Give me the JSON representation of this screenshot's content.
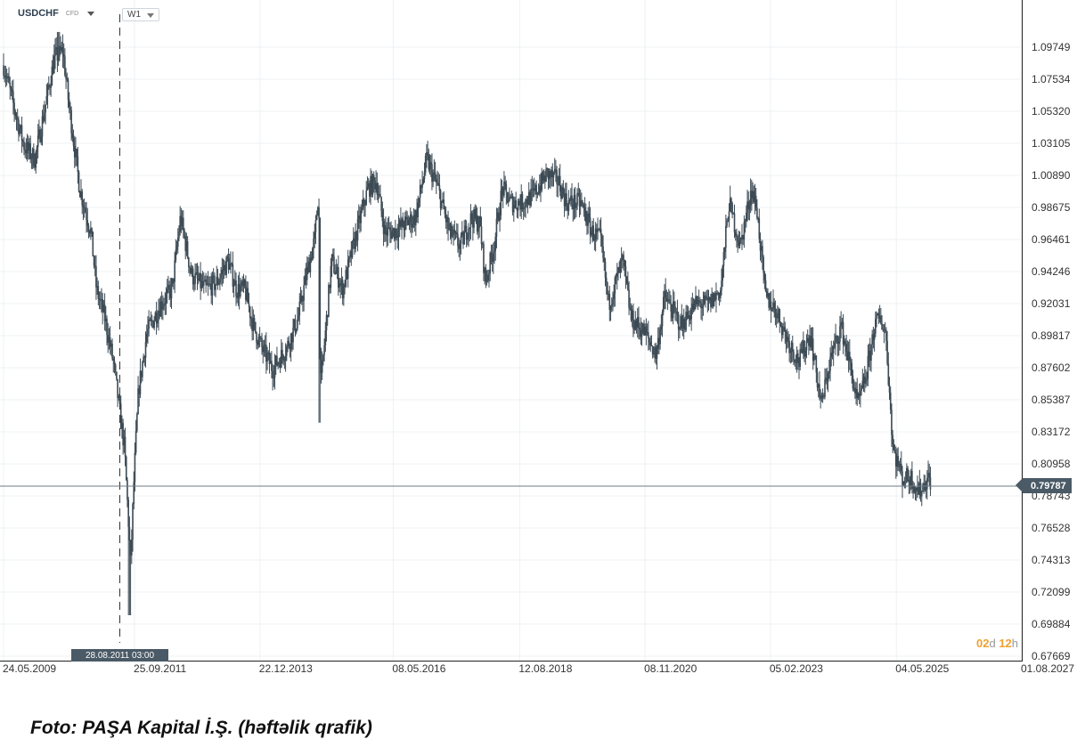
{
  "toolbar": {
    "symbol": "USDCHF",
    "symbol_type": "CFD",
    "timeframe": "W1"
  },
  "crosshair": {
    "date_label": "28.08.2011 03:00",
    "date_value": 2011.66
  },
  "current_price": {
    "value": 0.79787,
    "label": "0.79787"
  },
  "countdown": {
    "days": "02",
    "days_unit": "d",
    "hours": "12",
    "hours_unit": "h"
  },
  "caption": "Foto: PAŞA Kapital İ.Ş. (həftəlik qrafik)",
  "colors": {
    "candle": "#3d4b55",
    "grid": "#eef1f3",
    "flag": "#4a5a66",
    "countdown": "#f0a030"
  },
  "chart_data": {
    "type": "candlestick",
    "title": "",
    "symbol": "USDCHF",
    "timeframe": "W1",
    "xlim": [
      2009.39,
      2027.58
    ],
    "ylim": [
      0.67669,
      1.11
    ],
    "grid": true,
    "x_tick_labels": [
      "24.05.2009",
      "25.09.2011",
      "22.12.2013",
      "08.05.2016",
      "12.08.2018",
      "08.11.2020",
      "05.02.2023",
      "04.05.2025",
      "01.08.2027"
    ],
    "x_tick_values": [
      2009.39,
      2011.73,
      2013.97,
      2016.35,
      2018.61,
      2020.85,
      2023.09,
      2025.34,
      2027.58
    ],
    "y_tick_labels": [
      "1.09749",
      "1.07534",
      "1.05320",
      "1.03105",
      "1.00890",
      "0.98675",
      "0.96461",
      "0.94246",
      "0.92031",
      "0.89817",
      "0.87602",
      "0.85387",
      "0.83172",
      "0.80958",
      "0.78743",
      "0.76528",
      "0.74313",
      "0.72099",
      "0.69884",
      "0.67669"
    ],
    "y_tick_values": [
      1.09749,
      1.07534,
      1.0532,
      1.03105,
      1.0089,
      0.98675,
      0.96461,
      0.94246,
      0.92031,
      0.89817,
      0.87602,
      0.85387,
      0.83172,
      0.80958,
      0.78743,
      0.76528,
      0.74313,
      0.72099,
      0.69884,
      0.67669
    ],
    "close_path": [
      [
        2009.39,
        1.085
      ],
      [
        2009.55,
        1.06
      ],
      [
        2009.75,
        1.03
      ],
      [
        2009.95,
        1.02
      ],
      [
        2010.05,
        1.04
      ],
      [
        2010.2,
        1.07
      ],
      [
        2010.3,
        1.09
      ],
      [
        2010.45,
        1.095
      ],
      [
        2010.55,
        1.06
      ],
      [
        2010.75,
        1.0
      ],
      [
        2010.95,
        0.97
      ],
      [
        2011.05,
        0.93
      ],
      [
        2011.2,
        0.91
      ],
      [
        2011.35,
        0.88
      ],
      [
        2011.45,
        0.85
      ],
      [
        2011.55,
        0.82
      ],
      [
        2011.62,
        0.77
      ],
      [
        2011.66,
        0.74
      ],
      [
        2011.72,
        0.8
      ],
      [
        2011.8,
        0.86
      ],
      [
        2011.95,
        0.9
      ],
      [
        2012.2,
        0.92
      ],
      [
        2012.4,
        0.93
      ],
      [
        2012.55,
        0.98
      ],
      [
        2012.75,
        0.94
      ],
      [
        2013.0,
        0.93
      ],
      [
        2013.2,
        0.935
      ],
      [
        2013.4,
        0.95
      ],
      [
        2013.55,
        0.93
      ],
      [
        2013.7,
        0.93
      ],
      [
        2013.85,
        0.905
      ],
      [
        2014.0,
        0.89
      ],
      [
        2014.2,
        0.875
      ],
      [
        2014.45,
        0.89
      ],
      [
        2014.65,
        0.91
      ],
      [
        2014.8,
        0.94
      ],
      [
        2014.95,
        0.965
      ],
      [
        2015.02,
        1.0
      ],
      [
        2015.05,
        0.86
      ],
      [
        2015.25,
        0.95
      ],
      [
        2015.45,
        0.93
      ],
      [
        2015.7,
        0.97
      ],
      [
        2015.9,
        1.0
      ],
      [
        2016.05,
        1.005
      ],
      [
        2016.2,
        0.97
      ],
      [
        2016.35,
        0.97
      ],
      [
        2016.55,
        0.975
      ],
      [
        2016.75,
        0.98
      ],
      [
        2016.95,
        1.02
      ],
      [
        2017.15,
        1.0
      ],
      [
        2017.35,
        0.97
      ],
      [
        2017.55,
        0.96
      ],
      [
        2017.75,
        0.98
      ],
      [
        2017.9,
        0.975
      ],
      [
        2018.0,
        0.935
      ],
      [
        2018.15,
        0.96
      ],
      [
        2018.3,
        1.0
      ],
      [
        2018.45,
        0.99
      ],
      [
        2018.65,
        0.99
      ],
      [
        2018.85,
        0.995
      ],
      [
        2019.1,
        1.01
      ],
      [
        2019.3,
        1.005
      ],
      [
        2019.45,
        0.99
      ],
      [
        2019.7,
        0.99
      ],
      [
        2019.9,
        0.97
      ],
      [
        2020.05,
        0.965
      ],
      [
        2020.2,
        0.92
      ],
      [
        2020.45,
        0.95
      ],
      [
        2020.6,
        0.91
      ],
      [
        2020.85,
        0.9
      ],
      [
        2021.05,
        0.885
      ],
      [
        2021.2,
        0.925
      ],
      [
        2021.5,
        0.905
      ],
      [
        2021.75,
        0.92
      ],
      [
        2022.0,
        0.92
      ],
      [
        2022.2,
        0.93
      ],
      [
        2022.35,
        0.99
      ],
      [
        2022.55,
        0.96
      ],
      [
        2022.75,
        1.0
      ],
      [
        2022.85,
        0.985
      ],
      [
        2023.0,
        0.925
      ],
      [
        2023.2,
        0.915
      ],
      [
        2023.4,
        0.895
      ],
      [
        2023.6,
        0.88
      ],
      [
        2023.8,
        0.9
      ],
      [
        2024.0,
        0.85
      ],
      [
        2024.15,
        0.88
      ],
      [
        2024.35,
        0.905
      ],
      [
        2024.5,
        0.88
      ],
      [
        2024.65,
        0.85
      ],
      [
        2024.8,
        0.87
      ],
      [
        2024.95,
        0.905
      ],
      [
        2025.05,
        0.91
      ],
      [
        2025.15,
        0.9
      ],
      [
        2025.28,
        0.82
      ],
      [
        2025.45,
        0.8
      ],
      [
        2025.6,
        0.8
      ],
      [
        2025.75,
        0.79
      ],
      [
        2025.9,
        0.8
      ],
      [
        2025.95,
        0.7978
      ]
    ]
  }
}
